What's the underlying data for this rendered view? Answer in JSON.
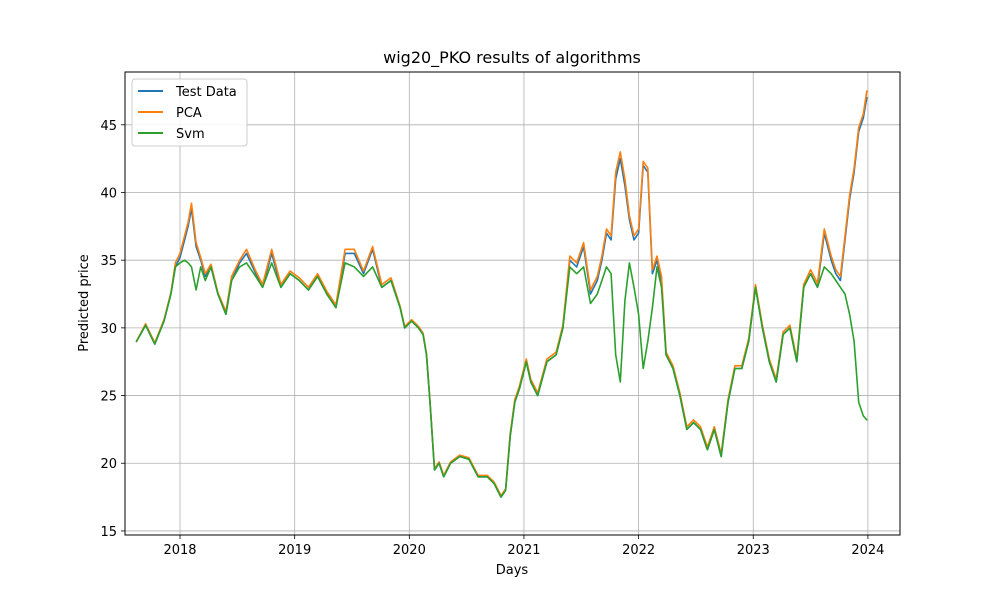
{
  "chart_data": {
    "type": "line",
    "title": "wig20_PKO results of algorithms",
    "xlabel": "Days",
    "ylabel": "Predicted price",
    "xlim": [
      2017.52,
      2024.28
    ],
    "ylim": [
      14.7,
      48.9
    ],
    "x_ticks": [
      2018,
      2019,
      2020,
      2021,
      2022,
      2023,
      2024
    ],
    "y_ticks": [
      15,
      20,
      25,
      30,
      35,
      40,
      45
    ],
    "grid": true,
    "legend_position": "top-left",
    "colors": {
      "Test Data": "#1f77b4",
      "PCA": "#ff7f0e",
      "Svm": "#2ca02c"
    },
    "x": [
      2017.62,
      2017.7,
      2017.78,
      2017.86,
      2017.92,
      2017.96,
      2018.0,
      2018.04,
      2018.07,
      2018.1,
      2018.14,
      2018.18,
      2018.22,
      2018.27,
      2018.33,
      2018.4,
      2018.45,
      2018.52,
      2018.58,
      2018.66,
      2018.72,
      2018.8,
      2018.88,
      2018.96,
      2019.04,
      2019.12,
      2019.2,
      2019.28,
      2019.36,
      2019.44,
      2019.52,
      2019.6,
      2019.68,
      2019.76,
      2019.84,
      2019.92,
      2019.96,
      2020.02,
      2020.08,
      2020.12,
      2020.15,
      2020.18,
      2020.22,
      2020.26,
      2020.3,
      2020.36,
      2020.44,
      2020.52,
      2020.6,
      2020.68,
      2020.74,
      2020.8,
      2020.84,
      2020.88,
      2020.92,
      2020.96,
      2021.02,
      2021.06,
      2021.12,
      2021.2,
      2021.28,
      2021.34,
      2021.4,
      2021.46,
      2021.52,
      2021.58,
      2021.64,
      2021.68,
      2021.72,
      2021.76,
      2021.8,
      2021.84,
      2021.88,
      2021.92,
      2021.96,
      2022.0,
      2022.04,
      2022.08,
      2022.12,
      2022.16,
      2022.2,
      2022.24,
      2022.3,
      2022.36,
      2022.42,
      2022.48,
      2022.54,
      2022.6,
      2022.66,
      2022.72,
      2022.78,
      2022.84,
      2022.9,
      2022.96,
      2023.02,
      2023.08,
      2023.14,
      2023.2,
      2023.26,
      2023.32,
      2023.38,
      2023.44,
      2023.5,
      2023.56,
      2023.62,
      2023.68,
      2023.72,
      2023.76,
      2023.8,
      2023.84,
      2023.88,
      2023.92,
      2023.96,
      2023.99
    ],
    "series": [
      {
        "name": "Test Data",
        "values": [
          29.0,
          30.2,
          28.8,
          30.5,
          32.5,
          34.5,
          35.2,
          36.5,
          37.5,
          38.8,
          36.0,
          35.0,
          33.8,
          34.5,
          32.5,
          31.0,
          33.5,
          34.8,
          35.5,
          34.0,
          33.0,
          35.5,
          33.0,
          34.0,
          33.5,
          32.8,
          33.8,
          32.5,
          31.5,
          35.5,
          35.5,
          34.0,
          35.8,
          33.0,
          33.5,
          31.5,
          30.0,
          30.5,
          30.0,
          29.5,
          28.0,
          24.5,
          19.5,
          20.0,
          19.0,
          20.0,
          20.5,
          20.3,
          19.0,
          19.0,
          18.5,
          17.5,
          18.0,
          22.0,
          24.5,
          25.5,
          27.5,
          26.0,
          25.0,
          27.5,
          28.0,
          30.0,
          35.0,
          34.5,
          36.0,
          32.5,
          33.5,
          35.0,
          37.0,
          36.5,
          41.0,
          42.5,
          40.5,
          38.0,
          36.5,
          37.0,
          42.0,
          41.5,
          34.0,
          35.0,
          33.5,
          28.0,
          27.0,
          25.0,
          22.5,
          23.0,
          22.5,
          21.0,
          22.5,
          20.5,
          24.5,
          27.0,
          27.0,
          29.0,
          33.0,
          30.0,
          27.5,
          26.0,
          29.5,
          30.0,
          27.5,
          33.0,
          34.0,
          33.0,
          37.0,
          35.0,
          34.0,
          33.5,
          36.5,
          39.5,
          41.5,
          44.5,
          45.5,
          47.0
        ]
      },
      {
        "name": "PCA",
        "values": [
          29.0,
          30.3,
          28.9,
          30.6,
          32.6,
          34.8,
          35.5,
          36.8,
          37.8,
          39.2,
          36.3,
          35.2,
          34.0,
          34.7,
          32.6,
          31.2,
          33.8,
          35.0,
          35.8,
          34.2,
          33.2,
          35.8,
          33.2,
          34.2,
          33.7,
          33.0,
          34.0,
          32.7,
          31.7,
          35.8,
          35.8,
          34.2,
          36.0,
          33.2,
          33.7,
          31.6,
          30.1,
          30.6,
          30.1,
          29.6,
          28.1,
          24.6,
          19.6,
          20.1,
          19.1,
          20.1,
          20.6,
          20.4,
          19.1,
          19.1,
          18.6,
          17.6,
          18.1,
          22.2,
          24.7,
          25.7,
          27.7,
          26.2,
          25.2,
          27.7,
          28.2,
          30.2,
          35.3,
          34.8,
          36.3,
          32.8,
          33.8,
          35.3,
          37.3,
          36.8,
          41.5,
          43.0,
          41.0,
          38.3,
          36.8,
          37.3,
          42.3,
          41.8,
          34.3,
          35.3,
          33.8,
          28.2,
          27.2,
          25.2,
          22.7,
          23.2,
          22.7,
          21.2,
          22.7,
          20.7,
          24.7,
          27.2,
          27.2,
          29.2,
          33.2,
          30.2,
          27.7,
          26.2,
          29.7,
          30.2,
          27.7,
          33.2,
          34.3,
          33.3,
          37.3,
          35.3,
          34.3,
          33.8,
          36.8,
          39.8,
          41.8,
          44.8,
          45.8,
          47.5
        ]
      },
      {
        "name": "Svm",
        "values": [
          29.0,
          30.2,
          28.8,
          30.5,
          32.5,
          34.5,
          34.8,
          35.0,
          34.8,
          34.5,
          32.8,
          34.5,
          33.5,
          34.5,
          32.5,
          31.0,
          33.5,
          34.5,
          34.8,
          33.8,
          33.0,
          34.8,
          33.0,
          34.0,
          33.5,
          32.8,
          33.8,
          32.5,
          31.5,
          34.8,
          34.5,
          33.8,
          34.5,
          33.0,
          33.5,
          31.5,
          30.0,
          30.5,
          30.0,
          29.5,
          28.0,
          24.5,
          19.5,
          20.0,
          19.0,
          20.0,
          20.5,
          20.3,
          19.0,
          19.0,
          18.5,
          17.5,
          18.0,
          22.0,
          24.5,
          25.5,
          27.5,
          26.0,
          25.0,
          27.5,
          28.0,
          30.0,
          34.5,
          34.0,
          34.5,
          31.8,
          32.5,
          33.5,
          34.5,
          34.0,
          28.0,
          26.0,
          32.0,
          34.8,
          33.0,
          31.0,
          27.0,
          29.0,
          31.5,
          34.5,
          33.0,
          28.0,
          27.0,
          25.0,
          22.5,
          23.0,
          22.5,
          21.0,
          22.5,
          20.5,
          24.5,
          27.0,
          27.0,
          29.0,
          33.0,
          30.0,
          27.5,
          26.0,
          29.5,
          30.0,
          27.5,
          33.0,
          34.0,
          33.0,
          34.5,
          34.0,
          33.5,
          33.0,
          32.5,
          31.0,
          29.0,
          24.5,
          23.5,
          23.2
        ]
      }
    ]
  }
}
